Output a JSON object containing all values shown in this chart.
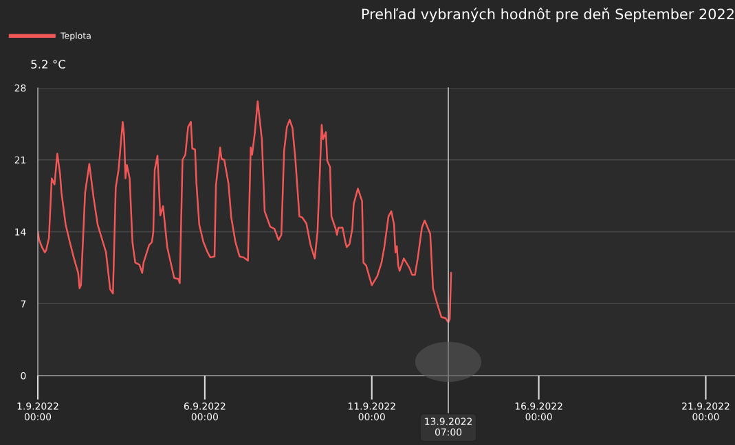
{
  "chart_data": {
    "type": "line",
    "title": "Prehľad vybraných hodnôt pre deň September 2022",
    "x": [
      "2022-09-01T00:00",
      "2022-09-01T01:00",
      "2022-09-01T03:00",
      "2022-09-01T05:00",
      "2022-09-01T06:00",
      "2022-09-01T08:00",
      "2022-09-01T10:00",
      "2022-09-01T12:00",
      "2022-09-01T14:00",
      "2022-09-01T16:00",
      "2022-09-01T17:00",
      "2022-09-01T20:00",
      "2022-09-01T23:00",
      "2022-09-02T02:00",
      "2022-09-02T05:00",
      "2022-09-02T06:00",
      "2022-09-02T07:00",
      "2022-09-02T10:00",
      "2022-09-02T13:00",
      "2022-09-02T16:00",
      "2022-09-02T19:00",
      "2022-09-03T01:00",
      "2022-09-03T04:00",
      "2022-09-03T06:00",
      "2022-09-03T08:00",
      "2022-09-03T10:00",
      "2022-09-03T13:00",
      "2022-09-03T14:00",
      "2022-09-03T15:00",
      "2022-09-03T16:00",
      "2022-09-03T18:00",
      "2022-09-03T20:00",
      "2022-09-03T22:00",
      "2022-09-04T01:00",
      "2022-09-04T03:00",
      "2022-09-04T04:00",
      "2022-09-04T08:00",
      "2022-09-04T10:00",
      "2022-09-04T11:00",
      "2022-09-04T12:00",
      "2022-09-04T14:00",
      "2022-09-04T16:00",
      "2022-09-04T18:00",
      "2022-09-04T21:00",
      "2022-09-05T02:00",
      "2022-09-05T05:00",
      "2022-09-05T06:00",
      "2022-09-05T08:00",
      "2022-09-05T10:00",
      "2022-09-05T12:00",
      "2022-09-05T14:00",
      "2022-09-05T15:00",
      "2022-09-05T17:00",
      "2022-09-05T18:00",
      "2022-09-05T20:00",
      "2022-09-05T23:00",
      "2022-09-06T02:00",
      "2022-09-06T04:00",
      "2022-09-06T07:00",
      "2022-09-06T08:00",
      "2022-09-06T11:00",
      "2022-09-06T12:00",
      "2022-09-06T14:00",
      "2022-09-06T17:00",
      "2022-09-06T19:00",
      "2022-09-06T22:00",
      "2022-09-07T01:00",
      "2022-09-07T04:00",
      "2022-09-07T07:00",
      "2022-09-07T09:00",
      "2022-09-07T10:00",
      "2022-09-07T12:00",
      "2022-09-07T14:00",
      "2022-09-07T17:00",
      "2022-09-07T19:00",
      "2022-09-07T23:00",
      "2022-09-08T02:00",
      "2022-09-08T05:00",
      "2022-09-08T07:00",
      "2022-09-08T09:00",
      "2022-09-08T11:00",
      "2022-09-08T13:00",
      "2022-09-08T15:00",
      "2022-09-08T17:00",
      "2022-09-08T20:00",
      "2022-09-08T22:00",
      "2022-09-09T01:00",
      "2022-09-09T04:00",
      "2022-09-09T07:00",
      "2022-09-09T09:00",
      "2022-09-09T12:00",
      "2022-09-09T13:00",
      "2022-09-09T15:00",
      "2022-09-09T16:00",
      "2022-09-09T18:00",
      "2022-09-09T19:00",
      "2022-09-09T22:00",
      "2022-09-09T23:00",
      "2022-09-10T00:00",
      "2022-09-10T03:00",
      "2022-09-10T05:00",
      "2022-09-10T06:00",
      "2022-09-10T08:00",
      "2022-09-10T10:00",
      "2022-09-10T11:00",
      "2022-09-10T14:00",
      "2022-09-10T17:00",
      "2022-09-10T18:00",
      "2022-09-10T20:00",
      "2022-09-11T00:00",
      "2022-09-11T04:00",
      "2022-09-11T07:00",
      "2022-09-11T09:00",
      "2022-09-11T12:00",
      "2022-09-11T14:00",
      "2022-09-11T16:00",
      "2022-09-11T17:00",
      "2022-09-11T18:00",
      "2022-09-11T19:00",
      "2022-09-11T20:00",
      "2022-09-11T23:00",
      "2022-09-12T03:00",
      "2022-09-12T05:00",
      "2022-09-12T07:00",
      "2022-09-12T09:00",
      "2022-09-12T12:00",
      "2022-09-12T14:00",
      "2022-09-12T18:00",
      "2022-09-12T20:00",
      "2022-09-12T23:00",
      "2022-09-13T02:00",
      "2022-09-13T05:00",
      "2022-09-13T07:00",
      "2022-09-13T08:00",
      "2022-09-13T09:00"
    ],
    "series": [
      {
        "name": "Teplota",
        "color": "#f25757",
        "values": [
          14.0,
          13.2,
          12.5,
          12.0,
          12.2,
          13.4,
          19.2,
          18.6,
          21.6,
          19.6,
          17.8,
          14.7,
          13.0,
          11.4,
          10.0,
          8.5,
          8.8,
          17.8,
          20.6,
          17.4,
          14.7,
          12.0,
          8.4,
          8.0,
          18.3,
          20.0,
          24.7,
          23.4,
          19.2,
          20.5,
          19.2,
          13.0,
          11.0,
          10.8,
          10.0,
          11.0,
          12.7,
          13.0,
          14.0,
          20.0,
          21.4,
          15.6,
          16.5,
          12.5,
          9.5,
          9.4,
          9.0,
          21.0,
          21.5,
          24.2,
          24.7,
          22.1,
          22.0,
          18.7,
          14.7,
          13.0,
          12.0,
          11.5,
          11.6,
          18.5,
          22.2,
          21.1,
          21.0,
          18.7,
          15.4,
          13.0,
          11.6,
          11.5,
          11.2,
          22.2,
          21.5,
          23.7,
          26.7,
          23.0,
          16.0,
          14.5,
          14.3,
          13.2,
          13.7,
          21.9,
          24.2,
          24.9,
          24.1,
          21.2,
          15.5,
          15.4,
          14.8,
          12.7,
          11.4,
          14.0,
          24.4,
          23.0,
          23.7,
          20.9,
          20.3,
          15.5,
          14.3,
          13.7,
          14.4,
          14.4,
          13.0,
          12.5,
          12.8,
          14.3,
          16.7,
          18.2,
          17.0,
          11.0,
          10.7,
          8.8,
          9.7,
          11.0,
          12.5,
          15.5,
          16.0,
          14.7,
          12.0,
          12.6,
          10.7,
          10.2,
          11.4,
          10.5,
          9.8,
          9.8,
          11.4,
          14.4,
          15.1,
          13.8,
          8.5,
          7.0,
          5.7,
          5.6,
          5.2,
          5.5,
          10.0
        ]
      }
    ],
    "xlim": [
      "2022-09-01T00:00",
      "2022-09-21T21:00"
    ],
    "xticks": [
      {
        "value": "2022-09-01",
        "label": "1.9.2022\n00:00"
      },
      {
        "value": "2022-09-06",
        "label": "6.9.2022\n00:00"
      },
      {
        "value": "2022-09-11",
        "label": "11.9.2022\n00:00"
      },
      {
        "value": "2022-09-16",
        "label": "16.9.2022\n00:00"
      },
      {
        "value": "2022-09-21",
        "label": "21.9.2022\n00:00"
      }
    ],
    "ylim": [
      0,
      28
    ],
    "yticks": [
      0,
      7,
      14,
      21,
      28
    ],
    "ref_lines": [
      {
        "axis": "x",
        "value": "2022-09-13T07:00",
        "label": "13.9.2022\n07:00",
        "color": "#bbbbbb"
      }
    ],
    "annotations": [
      "5.2 °C"
    ],
    "grid": "y",
    "legend": "top left",
    "line_style": "solid",
    "marker": "none"
  }
}
